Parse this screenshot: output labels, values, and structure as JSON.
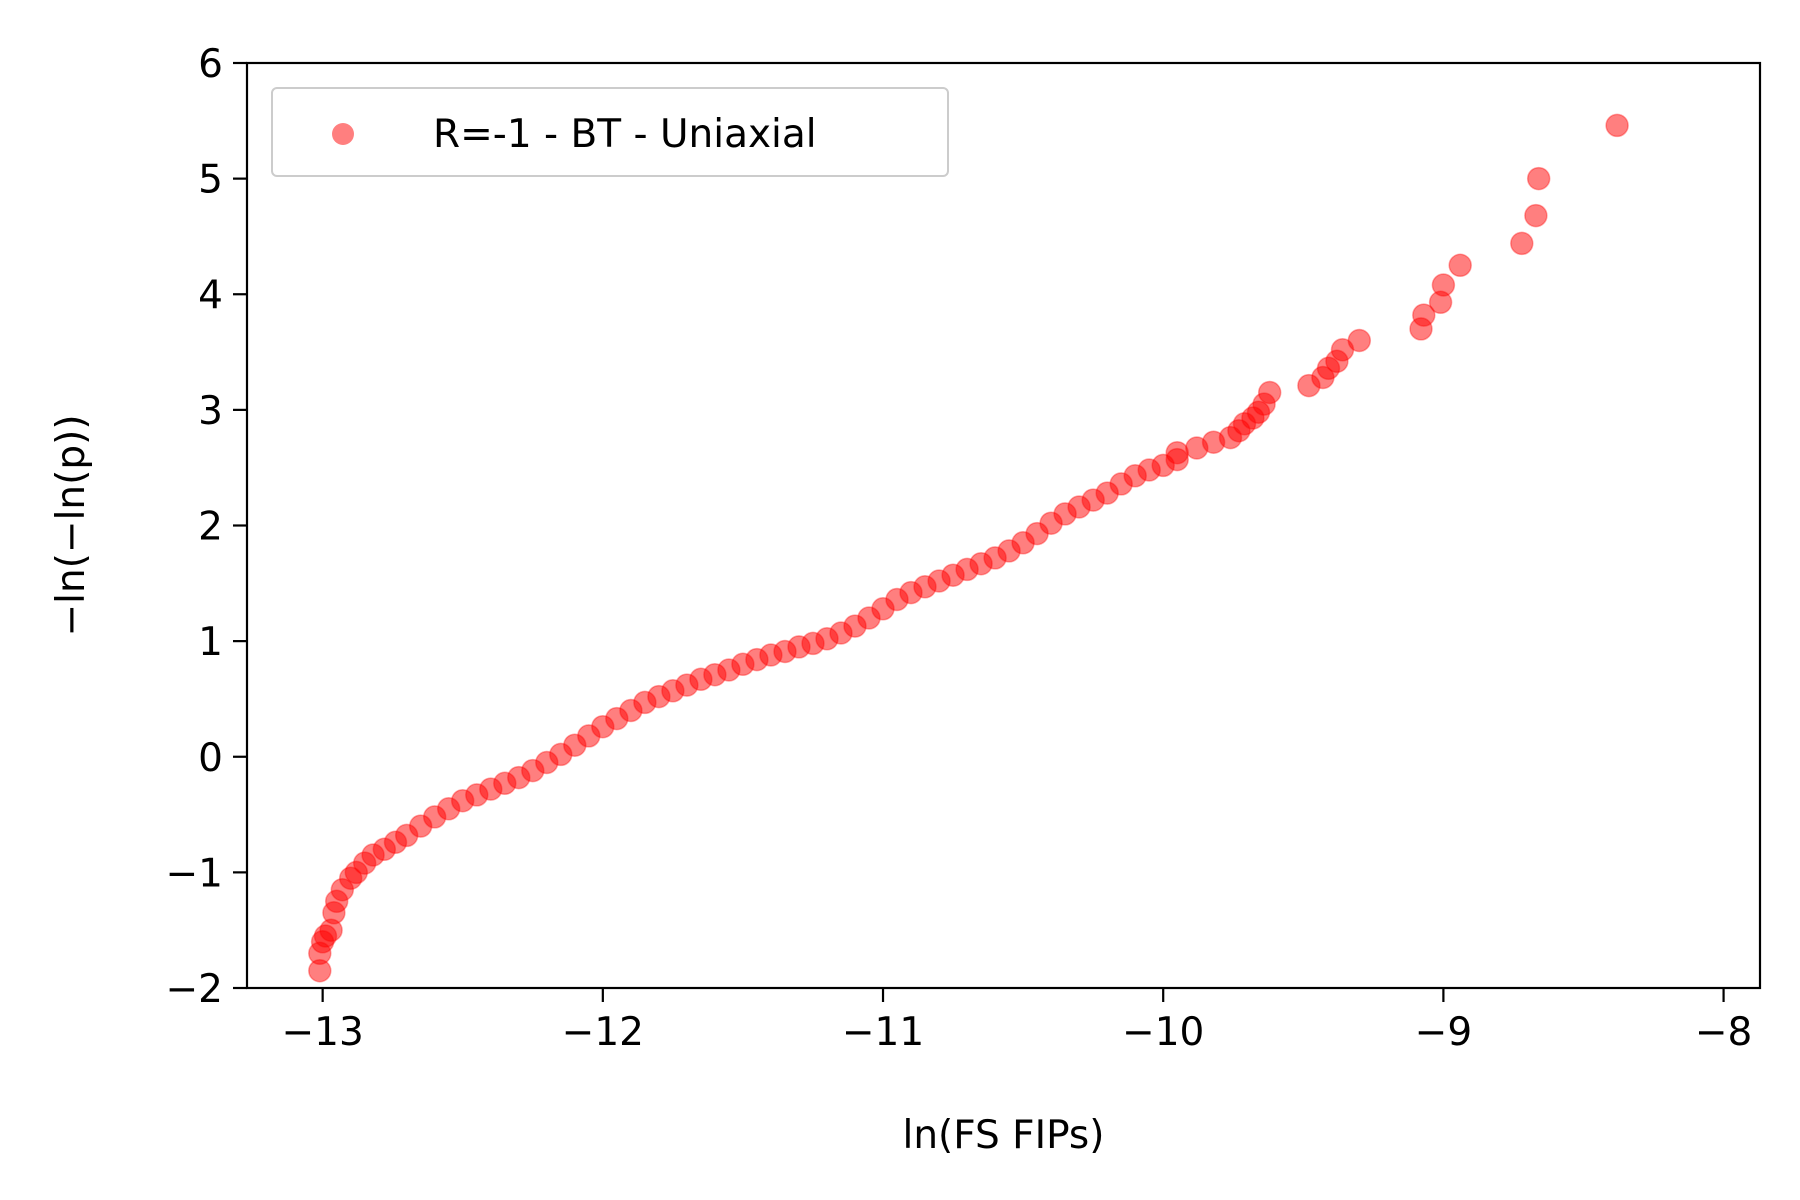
{
  "chart_data": {
    "type": "scatter",
    "xlabel": "ln(FS FIPs)",
    "ylabel": "−ln(−ln(p))",
    "xlim": [
      -13.27,
      -7.87
    ],
    "ylim": [
      -2,
      6
    ],
    "xticks": [
      -13,
      -12,
      -11,
      -10,
      -9,
      -8
    ],
    "xtick_labels": [
      "−13",
      "−12",
      "−11",
      "−10",
      "−9",
      "−8"
    ],
    "yticks": [
      -2,
      -1,
      0,
      1,
      2,
      3,
      4,
      5,
      6
    ],
    "ytick_labels": [
      "−2",
      "−1",
      "0",
      "1",
      "2",
      "3",
      "4",
      "5",
      "6"
    ],
    "grid": false,
    "legend": {
      "position": "upper-left",
      "entries": [
        "R=-1 - BT - Uniaxial"
      ]
    },
    "series": [
      {
        "name": "R=-1 - BT - Uniaxial",
        "color": "#ff0000",
        "alpha": 0.5,
        "points": [
          [
            -13.01,
            -1.85
          ],
          [
            -13.01,
            -1.7
          ],
          [
            -13.0,
            -1.6
          ],
          [
            -12.99,
            -1.55
          ],
          [
            -12.97,
            -1.5
          ],
          [
            -12.96,
            -1.35
          ],
          [
            -12.95,
            -1.25
          ],
          [
            -12.93,
            -1.15
          ],
          [
            -12.9,
            -1.05
          ],
          [
            -12.88,
            -1.0
          ],
          [
            -12.85,
            -0.92
          ],
          [
            -12.82,
            -0.85
          ],
          [
            -12.78,
            -0.8
          ],
          [
            -12.74,
            -0.74
          ],
          [
            -12.7,
            -0.68
          ],
          [
            -12.65,
            -0.6
          ],
          [
            -12.6,
            -0.52
          ],
          [
            -12.55,
            -0.45
          ],
          [
            -12.5,
            -0.38
          ],
          [
            -12.45,
            -0.33
          ],
          [
            -12.4,
            -0.28
          ],
          [
            -12.35,
            -0.23
          ],
          [
            -12.3,
            -0.18
          ],
          [
            -12.25,
            -0.12
          ],
          [
            -12.2,
            -0.05
          ],
          [
            -12.15,
            0.02
          ],
          [
            -12.1,
            0.1
          ],
          [
            -12.05,
            0.18
          ],
          [
            -12.0,
            0.26
          ],
          [
            -11.95,
            0.33
          ],
          [
            -11.9,
            0.4
          ],
          [
            -11.85,
            0.47
          ],
          [
            -11.8,
            0.52
          ],
          [
            -11.75,
            0.57
          ],
          [
            -11.7,
            0.62
          ],
          [
            -11.65,
            0.67
          ],
          [
            -11.6,
            0.71
          ],
          [
            -11.55,
            0.75
          ],
          [
            -11.5,
            0.8
          ],
          [
            -11.45,
            0.84
          ],
          [
            -11.4,
            0.88
          ],
          [
            -11.35,
            0.91
          ],
          [
            -11.3,
            0.95
          ],
          [
            -11.25,
            0.98
          ],
          [
            -11.2,
            1.02
          ],
          [
            -11.15,
            1.07
          ],
          [
            -11.1,
            1.13
          ],
          [
            -11.05,
            1.2
          ],
          [
            -11.0,
            1.28
          ],
          [
            -10.95,
            1.36
          ],
          [
            -10.9,
            1.42
          ],
          [
            -10.85,
            1.47
          ],
          [
            -10.8,
            1.52
          ],
          [
            -10.75,
            1.57
          ],
          [
            -10.7,
            1.62
          ],
          [
            -10.65,
            1.67
          ],
          [
            -10.6,
            1.72
          ],
          [
            -10.55,
            1.78
          ],
          [
            -10.5,
            1.85
          ],
          [
            -10.45,
            1.93
          ],
          [
            -10.4,
            2.02
          ],
          [
            -10.35,
            2.1
          ],
          [
            -10.3,
            2.16
          ],
          [
            -10.25,
            2.22
          ],
          [
            -10.2,
            2.28
          ],
          [
            -10.15,
            2.36
          ],
          [
            -10.1,
            2.43
          ],
          [
            -10.05,
            2.48
          ],
          [
            -10.0,
            2.52
          ],
          [
            -9.95,
            2.57
          ],
          [
            -9.95,
            2.63
          ],
          [
            -9.88,
            2.67
          ],
          [
            -9.82,
            2.72
          ],
          [
            -9.76,
            2.76
          ],
          [
            -9.73,
            2.82
          ],
          [
            -9.71,
            2.88
          ],
          [
            -9.68,
            2.93
          ],
          [
            -9.66,
            2.98
          ],
          [
            -9.64,
            3.05
          ],
          [
            -9.62,
            3.15
          ],
          [
            -9.48,
            3.21
          ],
          [
            -9.43,
            3.28
          ],
          [
            -9.41,
            3.36
          ],
          [
            -9.38,
            3.42
          ],
          [
            -9.36,
            3.52
          ],
          [
            -9.3,
            3.6
          ],
          [
            -9.08,
            3.7
          ],
          [
            -9.07,
            3.82
          ],
          [
            -9.01,
            3.93
          ],
          [
            -9.0,
            4.08
          ],
          [
            -8.94,
            4.25
          ],
          [
            -8.72,
            4.44
          ],
          [
            -8.67,
            4.68
          ],
          [
            -8.66,
            5.0
          ],
          [
            -8.38,
            5.46
          ]
        ]
      }
    ]
  }
}
